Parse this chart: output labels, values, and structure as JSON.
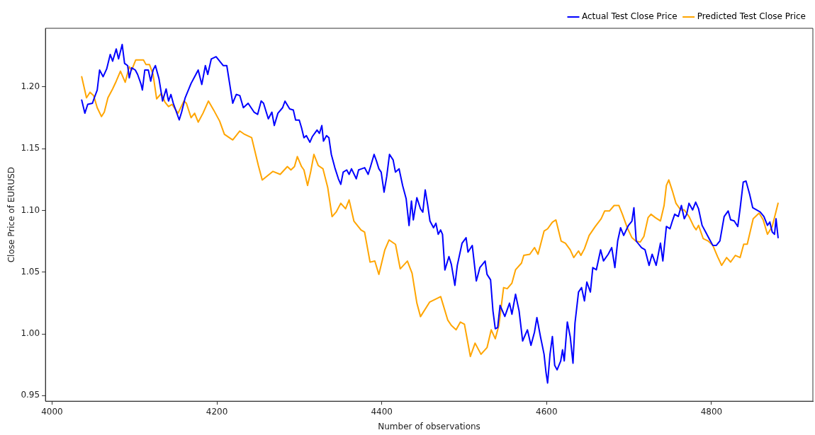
{
  "chart_data": {
    "type": "line",
    "xlabel": "Number of observations",
    "ylabel": "Close Price of EURUSD",
    "xlim": [
      3992,
      4923
    ],
    "xticks": [
      4000,
      4200,
      4400,
      4600,
      4800
    ],
    "ylim": [
      0.9455,
      1.2475
    ],
    "yticks": [
      0.95,
      {
        "value": 1.0,
        "label": "1.00"
      },
      1.05,
      {
        "value": 1.1,
        "label": "1.10"
      },
      1.15,
      {
        "value": 1.2,
        "label": "1.20"
      }
    ],
    "grid": false,
    "legend": "top right",
    "marker": "none",
    "line_style": "solid",
    "series": [
      {
        "name": "Actual Test Close Price",
        "color": "#0000ff",
        "x": [
          4036.0,
          4039.8,
          4043.3,
          4049.0,
          4051.3,
          4054.8,
          4057.7,
          4062.0,
          4066.3,
          4070.6,
          4073.5,
          4077.9,
          4080.7,
          4085.1,
          4088.0,
          4091.7,
          4093.7,
          4096.6,
          4101.0,
          4103.8,
          4108.1,
          4109.6,
          4112.5,
          4116.8,
          4119.7,
          4122.6,
          4125.4,
          4129.8,
          4134.1,
          4138.4,
          4141.3,
          4144.2,
          4147.1,
          4154.3,
          4157.2,
          4161.5,
          4168.7,
          4173.0,
          4177.3,
          4181.7,
          4186.0,
          4188.9,
          4193.2,
          4199.0,
          4203.3,
          4207.6,
          4212.0,
          4219.2,
          4223.5,
          4227.8,
          4232.1,
          4237.9,
          4245.1,
          4249.4,
          4253.7,
          4256.6,
          4262.4,
          4266.7,
          4269.6,
          4274.0,
          4279.7,
          4282.6,
          4288.3,
          4292.7,
          4295.5,
          4299.9,
          4302.7,
          4305.6,
          4308.5,
          4312.8,
          4315.7,
          4321.5,
          4324.4,
          4327.3,
          4329.3,
          4333.0,
          4335.9,
          4338.8,
          4343.1,
          4347.4,
          4350.3,
          4353.2,
          4357.5,
          4360.4,
          4363.3,
          4369.1,
          4371.9,
          4379.2,
          4383.5,
          4386.4,
          4390.7,
          4393.6,
          4396.5,
          4399.3,
          4402.8,
          4406.0,
          4409.4,
          4413.8,
          4416.6,
          4421.0,
          4425.3,
          4429.6,
          4433.1,
          4436.0,
          4438.3,
          4442.6,
          4447.0,
          4449.8,
          4452.7,
          4455.6,
          4458.5,
          4462.8,
          4465.7,
          4468.5,
          4471.4,
          4473.7,
          4476.6,
          4481.5,
          4484.4,
          4488.7,
          4491.6,
          4497.4,
          4502.3,
          4504.6,
          4509.8,
          4514.7,
          4519.0,
          4525.4,
          4527.7,
          4532.0,
          4534.9,
          4537.7,
          4540.6,
          4543.5,
          4549.3,
          4555.0,
          4557.9,
          4562.3,
          4566.6,
          4570.9,
          4576.7,
          4581.0,
          4585.3,
          4588.2,
          4592.5,
          4596.9,
          4599.2,
          4601.2,
          4604.1,
          4607.0,
          4609.8,
          4612.7,
          4617.1,
          4619.3,
          4621.4,
          4625.1,
          4628.6,
          4632.0,
          4634.4,
          4638.7,
          4642.4,
          4645.9,
          4648.8,
          4653.1,
          4656.0,
          4660.3,
          4665.5,
          4669.0,
          4674.7,
          4679.0,
          4682.8,
          4686.2,
          4689.7,
          4693.5,
          4699.2,
          4703.5,
          4705.9,
          4708.7,
          4710.7,
          4715.1,
          4719.4,
          4724.3,
          4728.0,
          4732.9,
          4738.1,
          4741.0,
          4745.3,
          4749.7,
          4752.6,
          4755.4,
          4759.8,
          4763.5,
          4767.0,
          4769.9,
          4772.7,
          4777.1,
          4780.8,
          4784.3,
          4788.6,
          4792.9,
          4797.2,
          4801.6,
          4805.9,
          4810.2,
          4815.4,
          4820.3,
          4823.2,
          4827.5,
          4831.9,
          4834.7,
          4838.5,
          4841.9,
          4846.3,
          4850.0,
          4854.9,
          4859.2,
          4863.6,
          4867.9,
          4870.8,
          4873.7,
          4876.5,
          4878.3,
          4880.8
        ],
        "values": [
          1.1894,
          1.1787,
          1.1859,
          1.1868,
          1.1912,
          1.1975,
          1.2137,
          1.2083,
          1.2146,
          1.2263,
          1.2209,
          1.2308,
          1.2227,
          1.2344,
          1.2191,
          1.2173,
          1.2074,
          1.2155,
          1.2137,
          1.2101,
          1.202,
          1.1975,
          1.2137,
          1.2137,
          1.2047,
          1.2137,
          1.2173,
          1.2065,
          1.1886,
          1.1984,
          1.1886,
          1.1939,
          1.1868,
          1.1733,
          1.1796,
          1.1912,
          1.2029,
          1.2083,
          1.2137,
          1.202,
          1.2173,
          1.2101,
          1.2227,
          1.2245,
          1.2209,
          1.2173,
          1.2173,
          1.1868,
          1.1939,
          1.193,
          1.1832,
          1.1868,
          1.1796,
          1.1778,
          1.1886,
          1.1868,
          1.1742,
          1.1796,
          1.1688,
          1.1787,
          1.1832,
          1.1885,
          1.1822,
          1.1813,
          1.1732,
          1.1732,
          1.1669,
          1.1588,
          1.1606,
          1.1552,
          1.1597,
          1.1651,
          1.1624,
          1.1687,
          1.1561,
          1.1606,
          1.1588,
          1.1454,
          1.1346,
          1.1256,
          1.1211,
          1.131,
          1.1328,
          1.1292,
          1.1337,
          1.1256,
          1.1328,
          1.1346,
          1.1292,
          1.1355,
          1.1454,
          1.14,
          1.1337,
          1.131,
          1.1148,
          1.1274,
          1.1454,
          1.1409,
          1.131,
          1.1337,
          1.1202,
          1.1094,
          1.0878,
          1.1076,
          1.0923,
          1.1103,
          1.1013,
          1.0986,
          1.1166,
          1.1049,
          1.0914,
          1.086,
          1.0896,
          1.0806,
          1.0842,
          1.0806,
          1.0518,
          1.0626,
          1.0564,
          1.0393,
          1.0554,
          1.0734,
          1.0779,
          1.0662,
          1.0716,
          1.0429,
          1.0536,
          1.059,
          1.0482,
          1.0438,
          1.0186,
          1.0042,
          1.0051,
          1.0231,
          1.0141,
          1.0249,
          1.0159,
          1.0321,
          1.0186,
          0.9943,
          1.0033,
          0.9907,
          1.0015,
          1.0132,
          0.9979,
          0.9835,
          0.9691,
          0.9602,
          0.9835,
          0.9979,
          0.9745,
          0.9709,
          0.9781,
          0.9871,
          0.9781,
          1.0096,
          0.9979,
          0.9763,
          1.0087,
          1.0339,
          1.0375,
          1.0267,
          1.042,
          1.0339,
          1.0537,
          1.0519,
          1.0681,
          1.0591,
          1.0645,
          1.0699,
          1.0537,
          1.0752,
          1.086,
          1.0797,
          1.0878,
          1.0914,
          1.1022,
          1.0752,
          1.0735,
          1.0699,
          1.0681,
          1.0555,
          1.0645,
          1.0555,
          1.0735,
          1.0591,
          1.087,
          1.0852,
          1.0915,
          1.0969,
          1.0951,
          1.104,
          1.0933,
          1.0969,
          1.1058,
          1.1004,
          1.1067,
          1.1013,
          1.0879,
          1.0825,
          1.0771,
          1.0717,
          1.0717,
          1.0753,
          1.0951,
          1.0996,
          1.0924,
          1.0915,
          1.087,
          1.1013,
          1.1229,
          1.1238,
          1.113,
          1.1022,
          1.1004,
          1.0987,
          1.0951,
          1.0879,
          1.0906,
          1.0825,
          1.0807,
          1.0933,
          1.078
        ]
      },
      {
        "name": "Predicted Test Close Price",
        "color": "#ffa500",
        "x": [
          4036.0,
          4041.8,
          4046.1,
          4050.5,
          4054.8,
          4060.0,
          4063.4,
          4067.8,
          4073.5,
          4077.9,
          4083.0,
          4088.8,
          4093.7,
          4096.6,
          4101.5,
          4106.7,
          4111.0,
          4113.9,
          4118.2,
          4122.6,
          4126.9,
          4132.6,
          4137.0,
          4141.3,
          4145.6,
          4152.8,
          4160.0,
          4163.0,
          4168.7,
          4173.0,
          4177.3,
          4183.1,
          4189.7,
          4196.0,
          4203.3,
          4209.1,
          4219.2,
          4227.8,
          4233.6,
          4242.2,
          4250.3,
          4255.0,
          4268.0,
          4276.8,
          4285.5,
          4289.8,
          4294.1,
          4297.6,
          4302.7,
          4305.6,
          4310.0,
          4313.7,
          4317.7,
          4322.9,
          4328.7,
          4334.5,
          4339.7,
          4344.6,
          4350.3,
          4356.1,
          4360.4,
          4366.2,
          4374.8,
          4379.2,
          4385.8,
          4391.6,
          4396.5,
          4403.7,
          4408.9,
          4416.7,
          4422.4,
          4431.1,
          4436.8,
          4442.6,
          4447.0,
          4458.0,
          4471.5,
          4480.0,
          4484.4,
          4490.2,
          4495.4,
          4500.3,
          4507.5,
          4513.2,
          4520.4,
          4527.7,
          4532.8,
          4537.7,
          4542.1,
          4547.8,
          4552.2,
          4557.9,
          4562.3,
          4569.5,
          4572.3,
          4579.6,
          4585.3,
          4589.6,
          4596.9,
          4601.2,
          4607.0,
          4611.3,
          4617.6,
          4622.8,
          4628.6,
          4632.9,
          4638.7,
          4641.6,
          4645.9,
          4651.6,
          4658.9,
          4666.1,
          4670.4,
          4676.2,
          4681.9,
          4687.7,
          4692.0,
          4697.8,
          4703.5,
          4707.9,
          4713.6,
          4718.0,
          4723.1,
          4726.6,
          4731.8,
          4738.1,
          4742.5,
          4745.3,
          4748.2,
          4752.6,
          4756.9,
          4762.6,
          4767.0,
          4772.7,
          4778.5,
          4781.4,
          4784.3,
          4790.0,
          4795.8,
          4801.6,
          4807.3,
          4812.3,
          4818.3,
          4823.2,
          4829.0,
          4834.7,
          4839.1,
          4843.4,
          4850.6,
          4857.8,
          4862.7,
          4867.9,
          4873.7,
          4880.8
        ],
        "values": [
          1.2083,
          1.1912,
          1.1957,
          1.193,
          1.1832,
          1.176,
          1.1796,
          1.1912,
          1.1984,
          1.2047,
          1.2128,
          1.2038,
          1.2164,
          1.2137,
          1.2218,
          1.2218,
          1.2218,
          1.2182,
          1.2182,
          1.2101,
          1.1903,
          1.1948,
          1.1877,
          1.1841,
          1.1859,
          1.1787,
          1.1886,
          1.1868,
          1.1751,
          1.1787,
          1.1715,
          1.1787,
          1.1886,
          1.1814,
          1.1724,
          1.1616,
          1.1571,
          1.1643,
          1.1616,
          1.1589,
          1.1364,
          1.1246,
          1.1316,
          1.1292,
          1.1355,
          1.1328,
          1.1355,
          1.1436,
          1.1355,
          1.1328,
          1.1202,
          1.131,
          1.1454,
          1.1364,
          1.1337,
          1.1184,
          1.095,
          1.0986,
          1.1058,
          1.1013,
          1.1085,
          1.0914,
          1.0842,
          1.0824,
          1.0581,
          1.059,
          1.0482,
          1.068,
          1.0761,
          1.0725,
          1.0527,
          1.059,
          1.0491,
          1.0249,
          1.014,
          1.0257,
          1.0302,
          1.0113,
          1.0069,
          1.0033,
          1.0096,
          1.0078,
          0.9817,
          0.9925,
          0.9835,
          0.9889,
          1.0033,
          0.9961,
          1.0069,
          1.0375,
          1.0366,
          1.0411,
          1.0519,
          1.0573,
          1.0636,
          1.0645,
          1.0699,
          1.0645,
          1.0833,
          1.0851,
          1.0905,
          1.0923,
          1.0752,
          1.0734,
          1.0681,
          1.0618,
          1.0672,
          1.0636,
          1.069,
          1.0797,
          1.0869,
          1.0932,
          1.0995,
          1.0995,
          1.104,
          1.104,
          1.0968,
          1.086,
          1.0779,
          1.0753,
          1.0744,
          1.0789,
          1.0942,
          1.0969,
          1.0942,
          1.0915,
          1.104,
          1.1202,
          1.1247,
          1.1157,
          1.1058,
          1.1004,
          1.1004,
          1.0951,
          1.087,
          1.0843,
          1.0879,
          1.0771,
          1.0753,
          1.0717,
          1.0627,
          1.0555,
          1.0618,
          1.0582,
          1.0636,
          1.0618,
          1.0726,
          1.0726,
          1.0933,
          1.0978,
          1.0924,
          1.0807,
          1.087,
          1.1058
        ]
      }
    ]
  }
}
